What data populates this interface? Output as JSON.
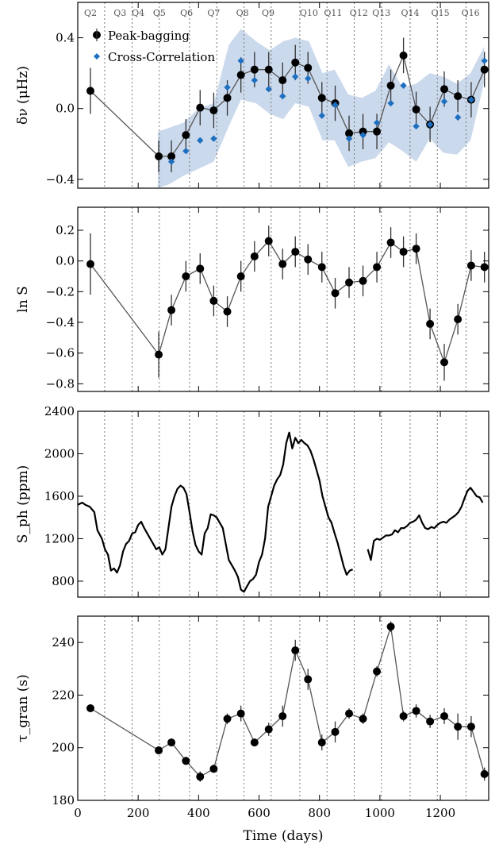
{
  "chart_data": [
    {
      "type": "scatter",
      "panel": "top",
      "ylabel": "δν (μHz)",
      "xlim": [
        0,
        1360
      ],
      "ylim": [
        -0.45,
        0.6
      ],
      "yticks": [
        -0.4,
        0.0,
        0.4
      ],
      "yticklabels": [
        "−0.4",
        "0.0",
        "0.4"
      ],
      "quarters": {
        "labels": [
          "Q2",
          "Q3",
          "Q4",
          "Q5",
          "Q6",
          "Q7",
          "Q8",
          "Q9",
          "Q10",
          "Q11",
          "Q12",
          "Q13",
          "Q14",
          "Q15",
          "Q16"
        ],
        "label_x": [
          42,
          140,
          200,
          270,
          360,
          450,
          545,
          630,
          765,
          845,
          930,
          1005,
          1100,
          1200,
          1300
        ],
        "boundaries": [
          89,
          180,
          270,
          370,
          460,
          550,
          640,
          735,
          825,
          915,
          1005,
          1100,
          1190,
          1285
        ]
      },
      "legend": {
        "position": "top-left",
        "entries": [
          "Peak-bagging",
          "Cross-Correlation"
        ]
      },
      "colors": {
        "peak": "#000000",
        "cc": "#1f6fc0",
        "band": "#c5d5ea",
        "line": "#555555"
      },
      "band": {
        "x": [
          265,
          300,
          350,
          400,
          450,
          500,
          540,
          590,
          635,
          680,
          720,
          765,
          810,
          850,
          895,
          940,
          985,
          1030,
          1075,
          1120,
          1165,
          1210,
          1255,
          1300,
          1345
        ],
        "upper": [
          -0.13,
          -0.11,
          -0.08,
          0.0,
          0.03,
          0.36,
          0.45,
          0.38,
          0.33,
          0.38,
          0.4,
          0.38,
          0.2,
          0.22,
          0.08,
          0.06,
          0.1,
          0.25,
          0.12,
          0.14,
          0.2,
          0.18,
          0.14,
          0.2,
          0.35
        ],
        "lower": [
          -0.45,
          -0.43,
          -0.38,
          -0.34,
          -0.3,
          -0.1,
          0.05,
          0.03,
          -0.03,
          -0.06,
          0.03,
          0.01,
          -0.18,
          -0.18,
          -0.33,
          -0.3,
          -0.28,
          -0.19,
          -0.24,
          -0.3,
          -0.17,
          -0.25,
          -0.26,
          -0.18,
          0.15
        ]
      },
      "series": [
        {
          "name": "Peak-bagging",
          "x": [
            42,
            268,
            310,
            358,
            405,
            450,
            495,
            540,
            585,
            632,
            678,
            720,
            762,
            808,
            852,
            898,
            944,
            990,
            1036,
            1078,
            1120,
            1166,
            1213,
            1258,
            1302,
            1346
          ],
          "y": [
            0.1,
            -0.27,
            -0.27,
            -0.15,
            0.005,
            -0.01,
            0.06,
            0.19,
            0.22,
            0.22,
            0.16,
            0.26,
            0.23,
            0.06,
            0.03,
            -0.14,
            -0.13,
            -0.13,
            0.13,
            0.3,
            -0.005,
            -0.09,
            0.11,
            0.07,
            0.05,
            0.22
          ],
          "err": [
            0.13,
            0.09,
            0.09,
            0.09,
            0.1,
            0.1,
            0.1,
            0.1,
            0.1,
            0.1,
            0.1,
            0.1,
            0.09,
            0.09,
            0.1,
            0.1,
            0.1,
            0.1,
            0.09,
            0.1,
            0.1,
            0.1,
            0.1,
            0.09,
            0.1,
            0.1
          ]
        },
        {
          "name": "Cross-Correlation",
          "x": [
            310,
            358,
            405,
            450,
            495,
            540,
            585,
            632,
            678,
            720,
            762,
            808,
            852,
            898,
            944,
            990,
            1036,
            1078,
            1120,
            1166,
            1213,
            1258,
            1302,
            1346
          ],
          "y": [
            -0.3,
            -0.24,
            -0.18,
            -0.17,
            0.12,
            0.27,
            0.16,
            0.11,
            0.07,
            0.18,
            0.17,
            -0.04,
            0.02,
            -0.17,
            -0.15,
            -0.08,
            0.03,
            0.13,
            -0.1,
            -0.09,
            0.04,
            -0.05,
            0.05,
            0.27
          ]
        }
      ]
    },
    {
      "type": "line",
      "panel": "lnS",
      "ylabel": "ln S",
      "ylim": [
        -0.85,
        0.35
      ],
      "yticks": [
        -0.8,
        -0.6,
        -0.4,
        -0.2,
        0.0,
        0.2
      ],
      "yticklabels": [
        "−0.8",
        "−0.6",
        "−0.4",
        "−0.2",
        "0.0",
        "0.2"
      ],
      "series": [
        {
          "name": "",
          "x": [
            42,
            268,
            310,
            358,
            405,
            450,
            495,
            540,
            585,
            632,
            678,
            720,
            762,
            808,
            852,
            898,
            944,
            990,
            1036,
            1078,
            1120,
            1166,
            1213,
            1258,
            1302,
            1346
          ],
          "y": [
            -0.02,
            -0.61,
            -0.32,
            -0.1,
            -0.05,
            -0.26,
            -0.33,
            -0.1,
            0.03,
            0.13,
            -0.02,
            0.06,
            0.01,
            -0.04,
            -0.21,
            -0.14,
            -0.13,
            -0.04,
            0.12,
            0.06,
            0.08,
            -0.41,
            -0.66,
            -0.38,
            -0.03,
            -0.04
          ],
          "err": [
            0.2,
            0.15,
            0.1,
            0.1,
            0.1,
            0.1,
            0.1,
            0.1,
            0.1,
            0.1,
            0.1,
            0.1,
            0.1,
            0.1,
            0.1,
            0.1,
            0.1,
            0.1,
            0.1,
            0.1,
            0.1,
            0.1,
            0.12,
            0.1,
            0.1,
            0.1
          ]
        }
      ]
    },
    {
      "type": "line",
      "panel": "Sph",
      "ylabel": "S_ph (ppm)",
      "ylim": [
        650,
        2400
      ],
      "yticks": [
        800,
        1200,
        1600,
        2000,
        2400
      ],
      "yticklabels": [
        "800",
        "1200",
        "1600",
        "2000",
        "2400"
      ],
      "series": [
        {
          "name": "",
          "segments": [
            {
              "x": [
                0,
                15,
                25,
                40,
                55,
                65,
                80,
                90,
                100,
                110,
                120,
                130,
                140,
                150,
                160,
                170,
                180,
                190,
                200,
                210,
                220,
                230,
                240,
                250,
                260,
                270,
                280,
                290,
                300,
                310,
                320,
                330,
                340,
                350,
                360,
                370,
                380,
                390,
                400,
                410,
                420,
                430,
                440,
                450,
                460,
                470,
                480,
                490,
                500,
                510,
                520,
                530,
                540,
                550,
                560,
                570,
                580,
                590,
                600,
                610,
                620,
                630,
                640,
                650,
                660,
                670,
                680,
                690,
                700,
                710,
                720,
                730,
                740,
                750,
                760,
                770,
                780,
                790,
                800,
                810,
                820,
                830,
                840,
                850,
                860,
                870,
                880,
                890,
                900,
                910
              ],
              "y": [
                1520,
                1540,
                1520,
                1500,
                1450,
                1280,
                1200,
                1100,
                1050,
                900,
                920,
                880,
                950,
                1080,
                1150,
                1180,
                1250,
                1260,
                1330,
                1360,
                1300,
                1250,
                1200,
                1150,
                1100,
                1120,
                1050,
                1100,
                1300,
                1500,
                1600,
                1670,
                1700,
                1680,
                1620,
                1450,
                1270,
                1140,
                1080,
                1050,
                1250,
                1300,
                1430,
                1420,
                1400,
                1350,
                1300,
                1150,
                1000,
                950,
                900,
                840,
                720,
                700,
                750,
                800,
                820,
                860,
                980,
                1050,
                1200,
                1500,
                1600,
                1700,
                1760,
                1800,
                1900,
                2100,
                2200,
                2050,
                2150,
                2100,
                2130,
                2100,
                2080,
                2030,
                1950,
                1850,
                1750,
                1600,
                1500,
                1400,
                1350,
                1250,
                1160,
                1050,
                940,
                860,
                900,
                910
              ]
            },
            {
              "x": [
                960,
                970,
                980,
                990,
                1000,
                1010,
                1020,
                1030,
                1040,
                1050,
                1060,
                1070,
                1080,
                1090,
                1100,
                1110,
                1120,
                1130,
                1140,
                1150,
                1160,
                1170,
                1180,
                1190,
                1200,
                1210,
                1220,
                1230,
                1240,
                1250,
                1260,
                1270,
                1280,
                1290,
                1300,
                1310,
                1320,
                1330,
                1340
              ],
              "y": [
                1100,
                1000,
                1180,
                1200,
                1190,
                1210,
                1230,
                1230,
                1240,
                1280,
                1260,
                1300,
                1300,
                1320,
                1350,
                1360,
                1380,
                1420,
                1350,
                1300,
                1290,
                1310,
                1300,
                1330,
                1350,
                1360,
                1350,
                1380,
                1400,
                1420,
                1450,
                1500,
                1580,
                1650,
                1680,
                1640,
                1600,
                1590,
                1540
              ]
            }
          ]
        }
      ]
    },
    {
      "type": "line",
      "panel": "tau",
      "ylabel": "τ_gran (s)",
      "xlabel": "Time (days)",
      "ylim": [
        180,
        250
      ],
      "yticks": [
        180,
        200,
        220,
        240
      ],
      "yticklabels": [
        "180",
        "200",
        "220",
        "240"
      ],
      "xticks": [
        0,
        200,
        400,
        600,
        800,
        1000,
        1200
      ],
      "xticklabels": [
        "0",
        "200",
        "400",
        "600",
        "800",
        "1000",
        "1200"
      ],
      "series": [
        {
          "name": "",
          "x": [
            42,
            268,
            310,
            358,
            405,
            450,
            495,
            540,
            585,
            632,
            678,
            720,
            762,
            808,
            852,
            898,
            944,
            990,
            1036,
            1078,
            1120,
            1166,
            1213,
            1258,
            1302,
            1346
          ],
          "y": [
            215,
            199,
            202,
            195,
            189,
            192,
            211,
            213,
            202,
            207,
            212,
            237,
            226,
            202,
            206,
            213,
            211,
            229,
            246,
            212,
            214,
            210,
            212,
            208,
            208,
            190
          ],
          "err": [
            0,
            1.5,
            1.5,
            1.5,
            2.0,
            1.5,
            2.0,
            3.0,
            1.5,
            2.5,
            4.0,
            4.0,
            4.0,
            3.0,
            4.0,
            2.0,
            2.0,
            2.0,
            2.0,
            2.0,
            2.5,
            2.5,
            3.0,
            5.0,
            4.0,
            2.5
          ]
        }
      ]
    }
  ]
}
